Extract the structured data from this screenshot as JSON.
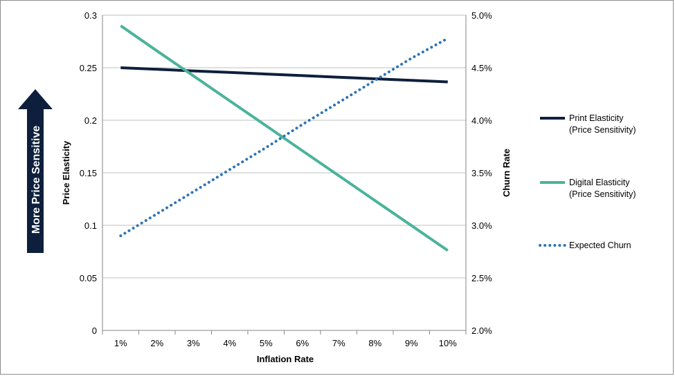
{
  "chart_data": {
    "type": "line",
    "x": [
      "1%",
      "2%",
      "3%",
      "4%",
      "5%",
      "6%",
      "7%",
      "8%",
      "9%",
      "10%"
    ],
    "xlabel": "Inflation Rate",
    "ylabel": "Price Elasticity",
    "y2label": "Churn Rate",
    "ylim": [
      0,
      0.3
    ],
    "yticks": [
      "0",
      "0.05",
      "0.1",
      "0.15",
      "0.2",
      "0.25",
      "0.3"
    ],
    "y2lim": [
      0.02,
      0.05
    ],
    "y2ticks": [
      "2.0%",
      "2.5%",
      "3.0%",
      "3.5%",
      "4.0%",
      "4.5%",
      "5.0%"
    ],
    "grid": "horizontal",
    "legend_position": "right",
    "series": [
      {
        "name": "Print Elasticity\n(Price Sensitivity)",
        "axis": "left",
        "color": "#0d1f3c",
        "style": "solid",
        "values": [
          0.25,
          0.2485,
          0.247,
          0.2455,
          0.244,
          0.2425,
          0.241,
          0.2395,
          0.238,
          0.2365
        ]
      },
      {
        "name": "Digital Elasticity\n(Price Sensitivity)",
        "axis": "left",
        "color": "#4bb39b",
        "style": "solid",
        "values": [
          0.29,
          0.266,
          0.2423,
          0.2185,
          0.1948,
          0.171,
          0.1473,
          0.1235,
          0.0998,
          0.076
        ]
      },
      {
        "name": "Expected Churn",
        "axis": "right",
        "color": "#2e74b5",
        "style": "dotted",
        "values": [
          0.029,
          0.0311,
          0.0332,
          0.0353,
          0.0374,
          0.0396,
          0.0417,
          0.0438,
          0.0459,
          0.0478
        ]
      }
    ]
  },
  "annotation": {
    "arrow_label": "More Price Sensitive",
    "arrow_color": "#0d1f3c"
  }
}
